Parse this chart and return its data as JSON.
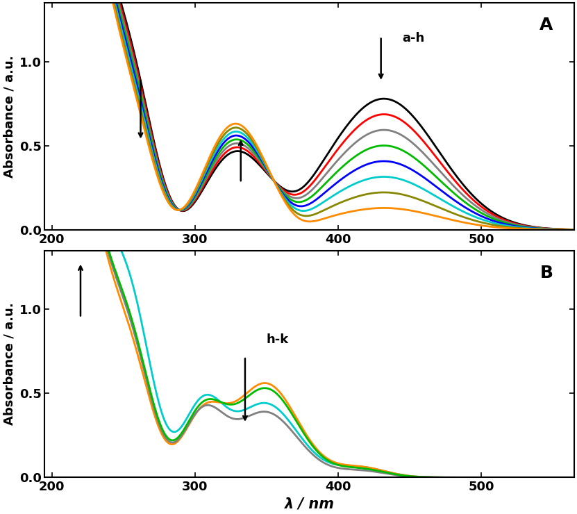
{
  "xlim": [
    195,
    565
  ],
  "ylim_A": [
    0.0,
    1.35
  ],
  "ylim_B": [
    0.0,
    1.35
  ],
  "yticks": [
    0.0,
    0.5,
    1.0
  ],
  "xticks": [
    200,
    300,
    400,
    500
  ],
  "xlabel": "λ / nm",
  "ylabel": "Absorbance / a.u.",
  "label_A": "A",
  "label_B": "B",
  "colors_A": [
    "#000000",
    "#ff0000",
    "#808080",
    "#00bb00",
    "#0000ff",
    "#00cccc",
    "#888800",
    "#ff8c00"
  ],
  "colors_B": [
    "#00cccc",
    "#ff8c00",
    "#808080",
    "#00bb00"
  ]
}
